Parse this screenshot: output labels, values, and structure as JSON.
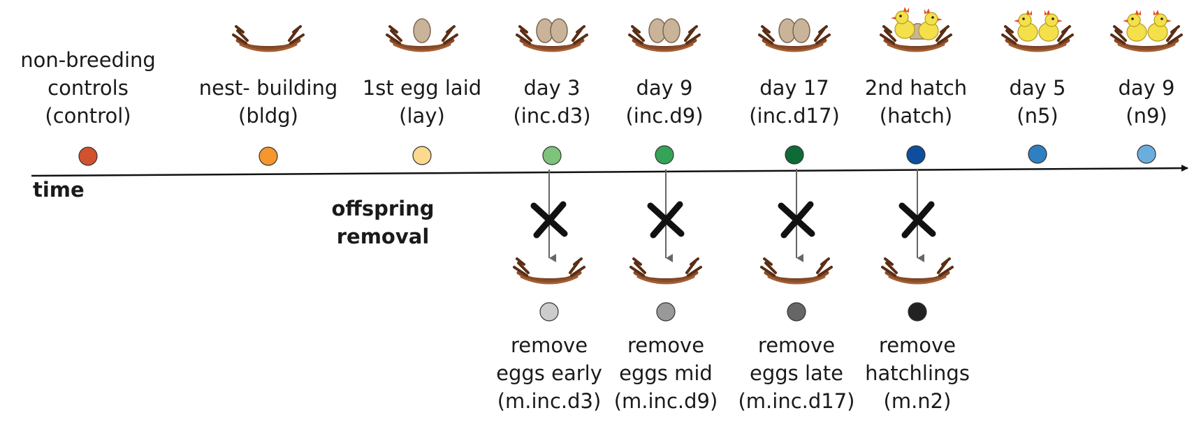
{
  "axis": {
    "label": "time"
  },
  "stages": [
    {
      "lines": [
        "non-breeding",
        "controls",
        "(control)"
      ],
      "color": "#d2512f",
      "nest": "none"
    },
    {
      "lines": [
        "nest-  building",
        "(bldg)"
      ],
      "color": "#f5962e",
      "nest": "empty"
    },
    {
      "lines": [
        "1st egg laid",
        "(lay)"
      ],
      "color": "#fcd98f",
      "nest": "one-egg"
    },
    {
      "lines": [
        "day 3",
        "(inc.d3)"
      ],
      "color": "#7dc47a",
      "nest": "two-eggs"
    },
    {
      "lines": [
        "day 9",
        "(inc.d9)"
      ],
      "color": "#35a355",
      "nest": "two-eggs"
    },
    {
      "lines": [
        "day 17",
        "(inc.d17)"
      ],
      "color": "#0f6b35",
      "nest": "two-eggs"
    },
    {
      "lines": [
        "2nd hatch",
        "(hatch)"
      ],
      "color": "#0d4f9e",
      "nest": "hatching"
    },
    {
      "lines": [
        "day 5",
        "(n5)"
      ],
      "color": "#2f80c2",
      "nest": "chicks"
    },
    {
      "lines": [
        "day 9",
        "(n9)"
      ],
      "color": "#6aaede",
      "nest": "chicks"
    }
  ],
  "removal": {
    "label_lines": [
      "offspring",
      "removal"
    ],
    "groups": [
      {
        "lines": [
          "remove",
          "eggs early",
          "(m.inc.d3)"
        ],
        "color": "#cccccc"
      },
      {
        "lines": [
          "remove",
          "eggs mid",
          "(m.inc.d9)"
        ],
        "color": "#999999"
      },
      {
        "lines": [
          "remove",
          "eggs late",
          "(m.inc.d17)"
        ],
        "color": "#666666"
      },
      {
        "lines": [
          "remove",
          "hatchlings",
          "(m.n2)"
        ],
        "color": "#222222"
      }
    ]
  },
  "icons": [
    "nest-icon",
    "egg-icon",
    "chick-icon",
    "cross-icon",
    "arrow-icon"
  ]
}
